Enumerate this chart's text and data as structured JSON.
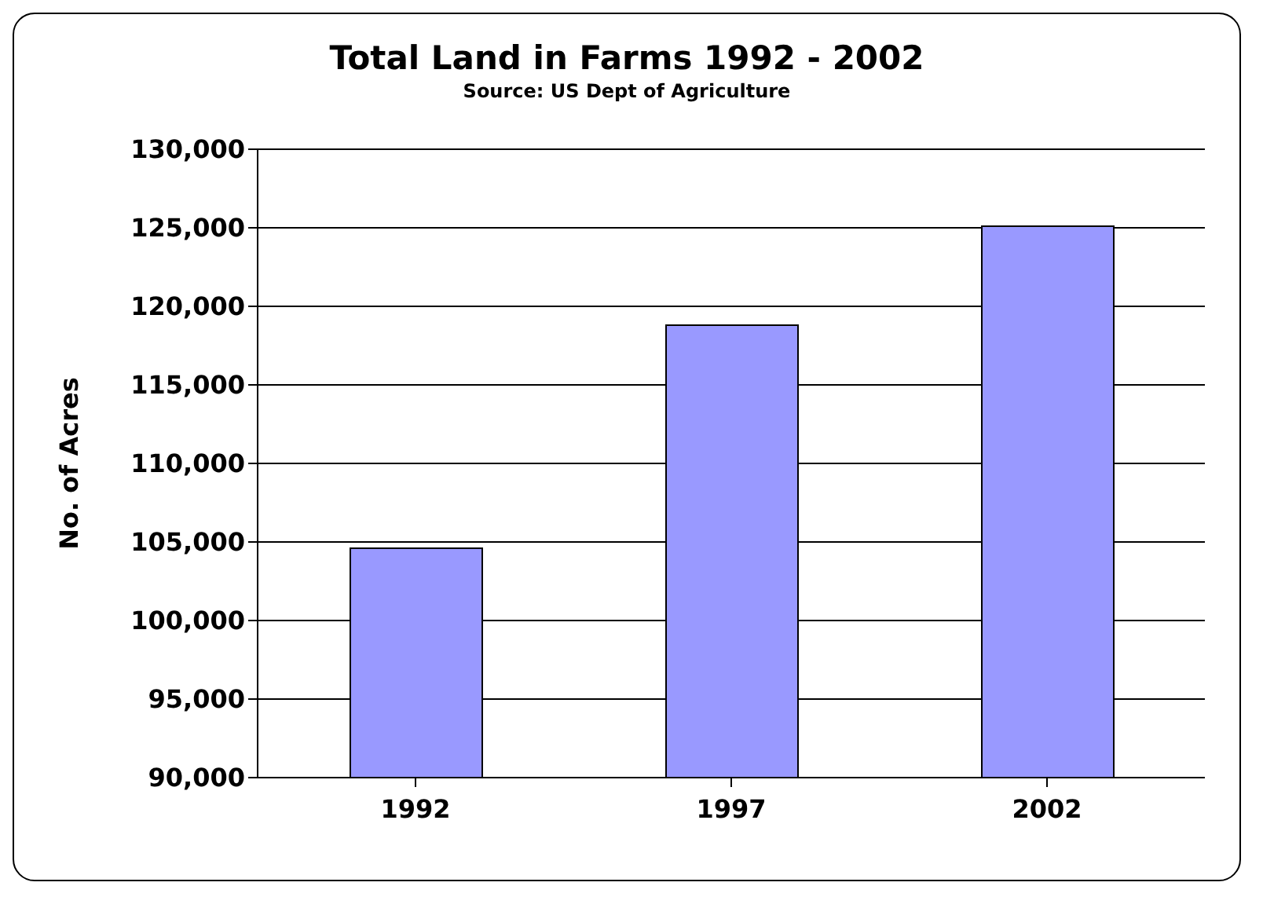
{
  "chart_data": {
    "type": "bar",
    "title": "Total Land in Farms 1992 - 2002",
    "subtitle": "Source:  US Dept of Agriculture",
    "ylabel": "No. of Acres",
    "categories": [
      "1992",
      "1997",
      "2002"
    ],
    "series": [
      {
        "color": "#9999ff",
        "values": [
          104600,
          118800,
          125100
        ]
      }
    ],
    "ylim": [
      90000,
      130000
    ],
    "yticks": [
      {
        "value": 90000,
        "label": "90,000"
      },
      {
        "value": 95000,
        "label": "95,000"
      },
      {
        "value": 100000,
        "label": "100,000"
      },
      {
        "value": 105000,
        "label": "105,000"
      },
      {
        "value": 110000,
        "label": "110,000"
      },
      {
        "value": 115000,
        "label": "115,000"
      },
      {
        "value": 120000,
        "label": "120,000"
      },
      {
        "value": 125000,
        "label": "125,000"
      },
      {
        "value": 130000,
        "label": "130,000"
      }
    ],
    "grid": "y",
    "legend": false
  }
}
